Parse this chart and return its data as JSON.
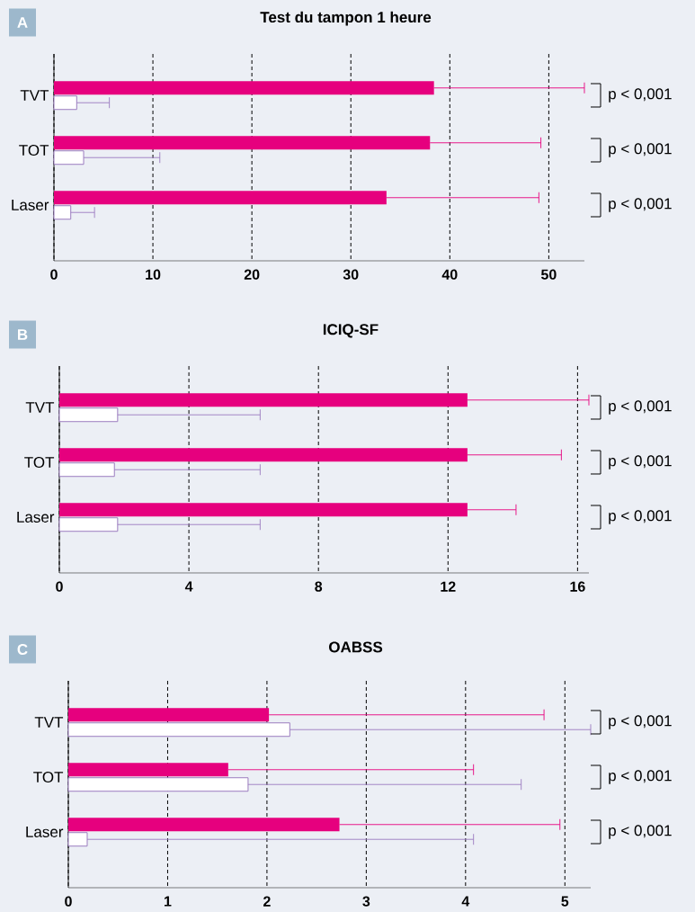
{
  "chart_data": [
    {
      "type": "bar",
      "orientation": "horizontal",
      "title": "Test du tampon 1 heure",
      "categories": [
        "TVT",
        "TOT",
        "Laser"
      ],
      "series": [
        {
          "color": "#e6007e",
          "values": [
            38.4,
            38.0,
            33.6
          ],
          "errors": [
            [
              38.4,
              53.6
            ],
            [
              38.0,
              49.2
            ],
            [
              33.6,
              49.0
            ]
          ]
        },
        {
          "color": "#9b7bbf",
          "values": [
            2.3,
            3.0,
            1.7
          ],
          "errors": [
            [
              2.3,
              5.6
            ],
            [
              3.0,
              10.7
            ],
            [
              1.7,
              4.1
            ]
          ]
        }
      ],
      "xlim": [
        0,
        53.6
      ],
      "xticks": [
        0,
        10,
        20,
        30,
        40,
        50
      ],
      "grid": "x",
      "annotations": [
        "A",
        "p < 0,001",
        "p < 0,001",
        "p < 0,001"
      ]
    },
    {
      "type": "bar",
      "orientation": "horizontal",
      "title": "ICIQ-SF",
      "categories": [
        "TVT",
        "TOT",
        "Laser"
      ],
      "series": [
        {
          "color": "#e6007e",
          "values": [
            12.6,
            12.6,
            12.6
          ],
          "errors": [
            [
              12.6,
              16.35
            ],
            [
              12.6,
              15.5
            ],
            [
              12.6,
              14.1
            ]
          ]
        },
        {
          "color": "#9b7bbf",
          "values": [
            1.8,
            1.7,
            1.8
          ],
          "errors": [
            [
              1.8,
              6.2
            ],
            [
              1.7,
              6.2
            ],
            [
              1.8,
              6.2
            ]
          ]
        }
      ],
      "xlim": [
        0,
        16.35
      ],
      "xticks": [
        0,
        4,
        8,
        12,
        16
      ],
      "grid": "x",
      "annotations": [
        "B",
        "p < 0,001",
        "p < 0,001",
        "p < 0,001"
      ]
    },
    {
      "type": "bar",
      "orientation": "horizontal",
      "title": "OABSS",
      "categories": [
        "TVT",
        "TOT",
        "Laser"
      ],
      "series": [
        {
          "color": "#e6007e",
          "values": [
            2.02,
            1.61,
            2.73
          ],
          "errors": [
            [
              2.02,
              4.79
            ],
            [
              1.61,
              4.08
            ],
            [
              2.73,
              4.95
            ]
          ]
        },
        {
          "color": "#9b7bbf",
          "values": [
            2.23,
            1.81,
            0.19
          ],
          "errors": [
            [
              2.23,
              5.26
            ],
            [
              1.81,
              4.56
            ],
            [
              0.19,
              4.08
            ]
          ]
        }
      ],
      "xlim": [
        0,
        5.26
      ],
      "xticks": [
        0,
        1,
        2,
        3,
        4,
        5
      ],
      "grid": "x",
      "annotations": [
        "C",
        "p < 0,001",
        "p < 0,001",
        "p < 0,001"
      ]
    }
  ]
}
